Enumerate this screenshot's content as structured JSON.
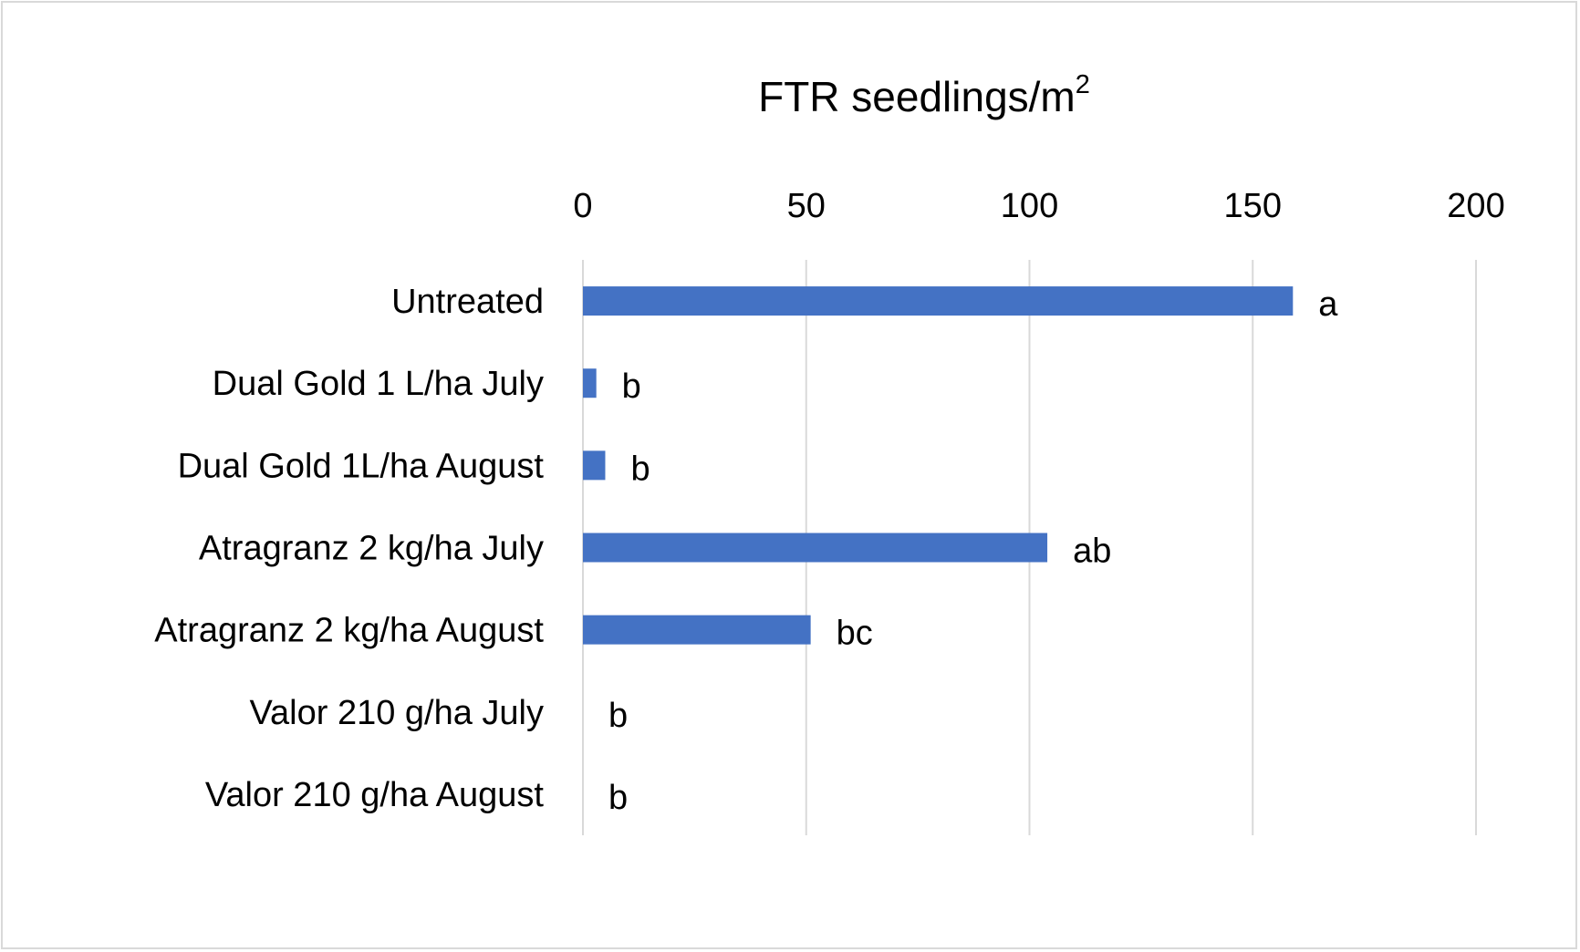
{
  "chart_data": {
    "type": "bar",
    "orientation": "horizontal",
    "xlabel": "FTR seedlings/m",
    "xlabel_superscript": "2",
    "xlim": [
      0,
      200
    ],
    "xticks": [
      0,
      50,
      100,
      150,
      200
    ],
    "grid": true,
    "bar_color": "#4472c4",
    "categories": [
      "Untreated",
      "Dual Gold 1 L/ha July",
      "Dual Gold 1L/ha August",
      "Atragranz 2 kg/ha July",
      "Atragranz 2 kg/ha August",
      "Valor 210 g/ha July",
      "Valor 210 g/ha August"
    ],
    "values": [
      159,
      3,
      5,
      104,
      51,
      0,
      0
    ],
    "data_labels": [
      "a",
      "b",
      "b",
      "ab",
      "bc",
      "b",
      "b"
    ]
  }
}
